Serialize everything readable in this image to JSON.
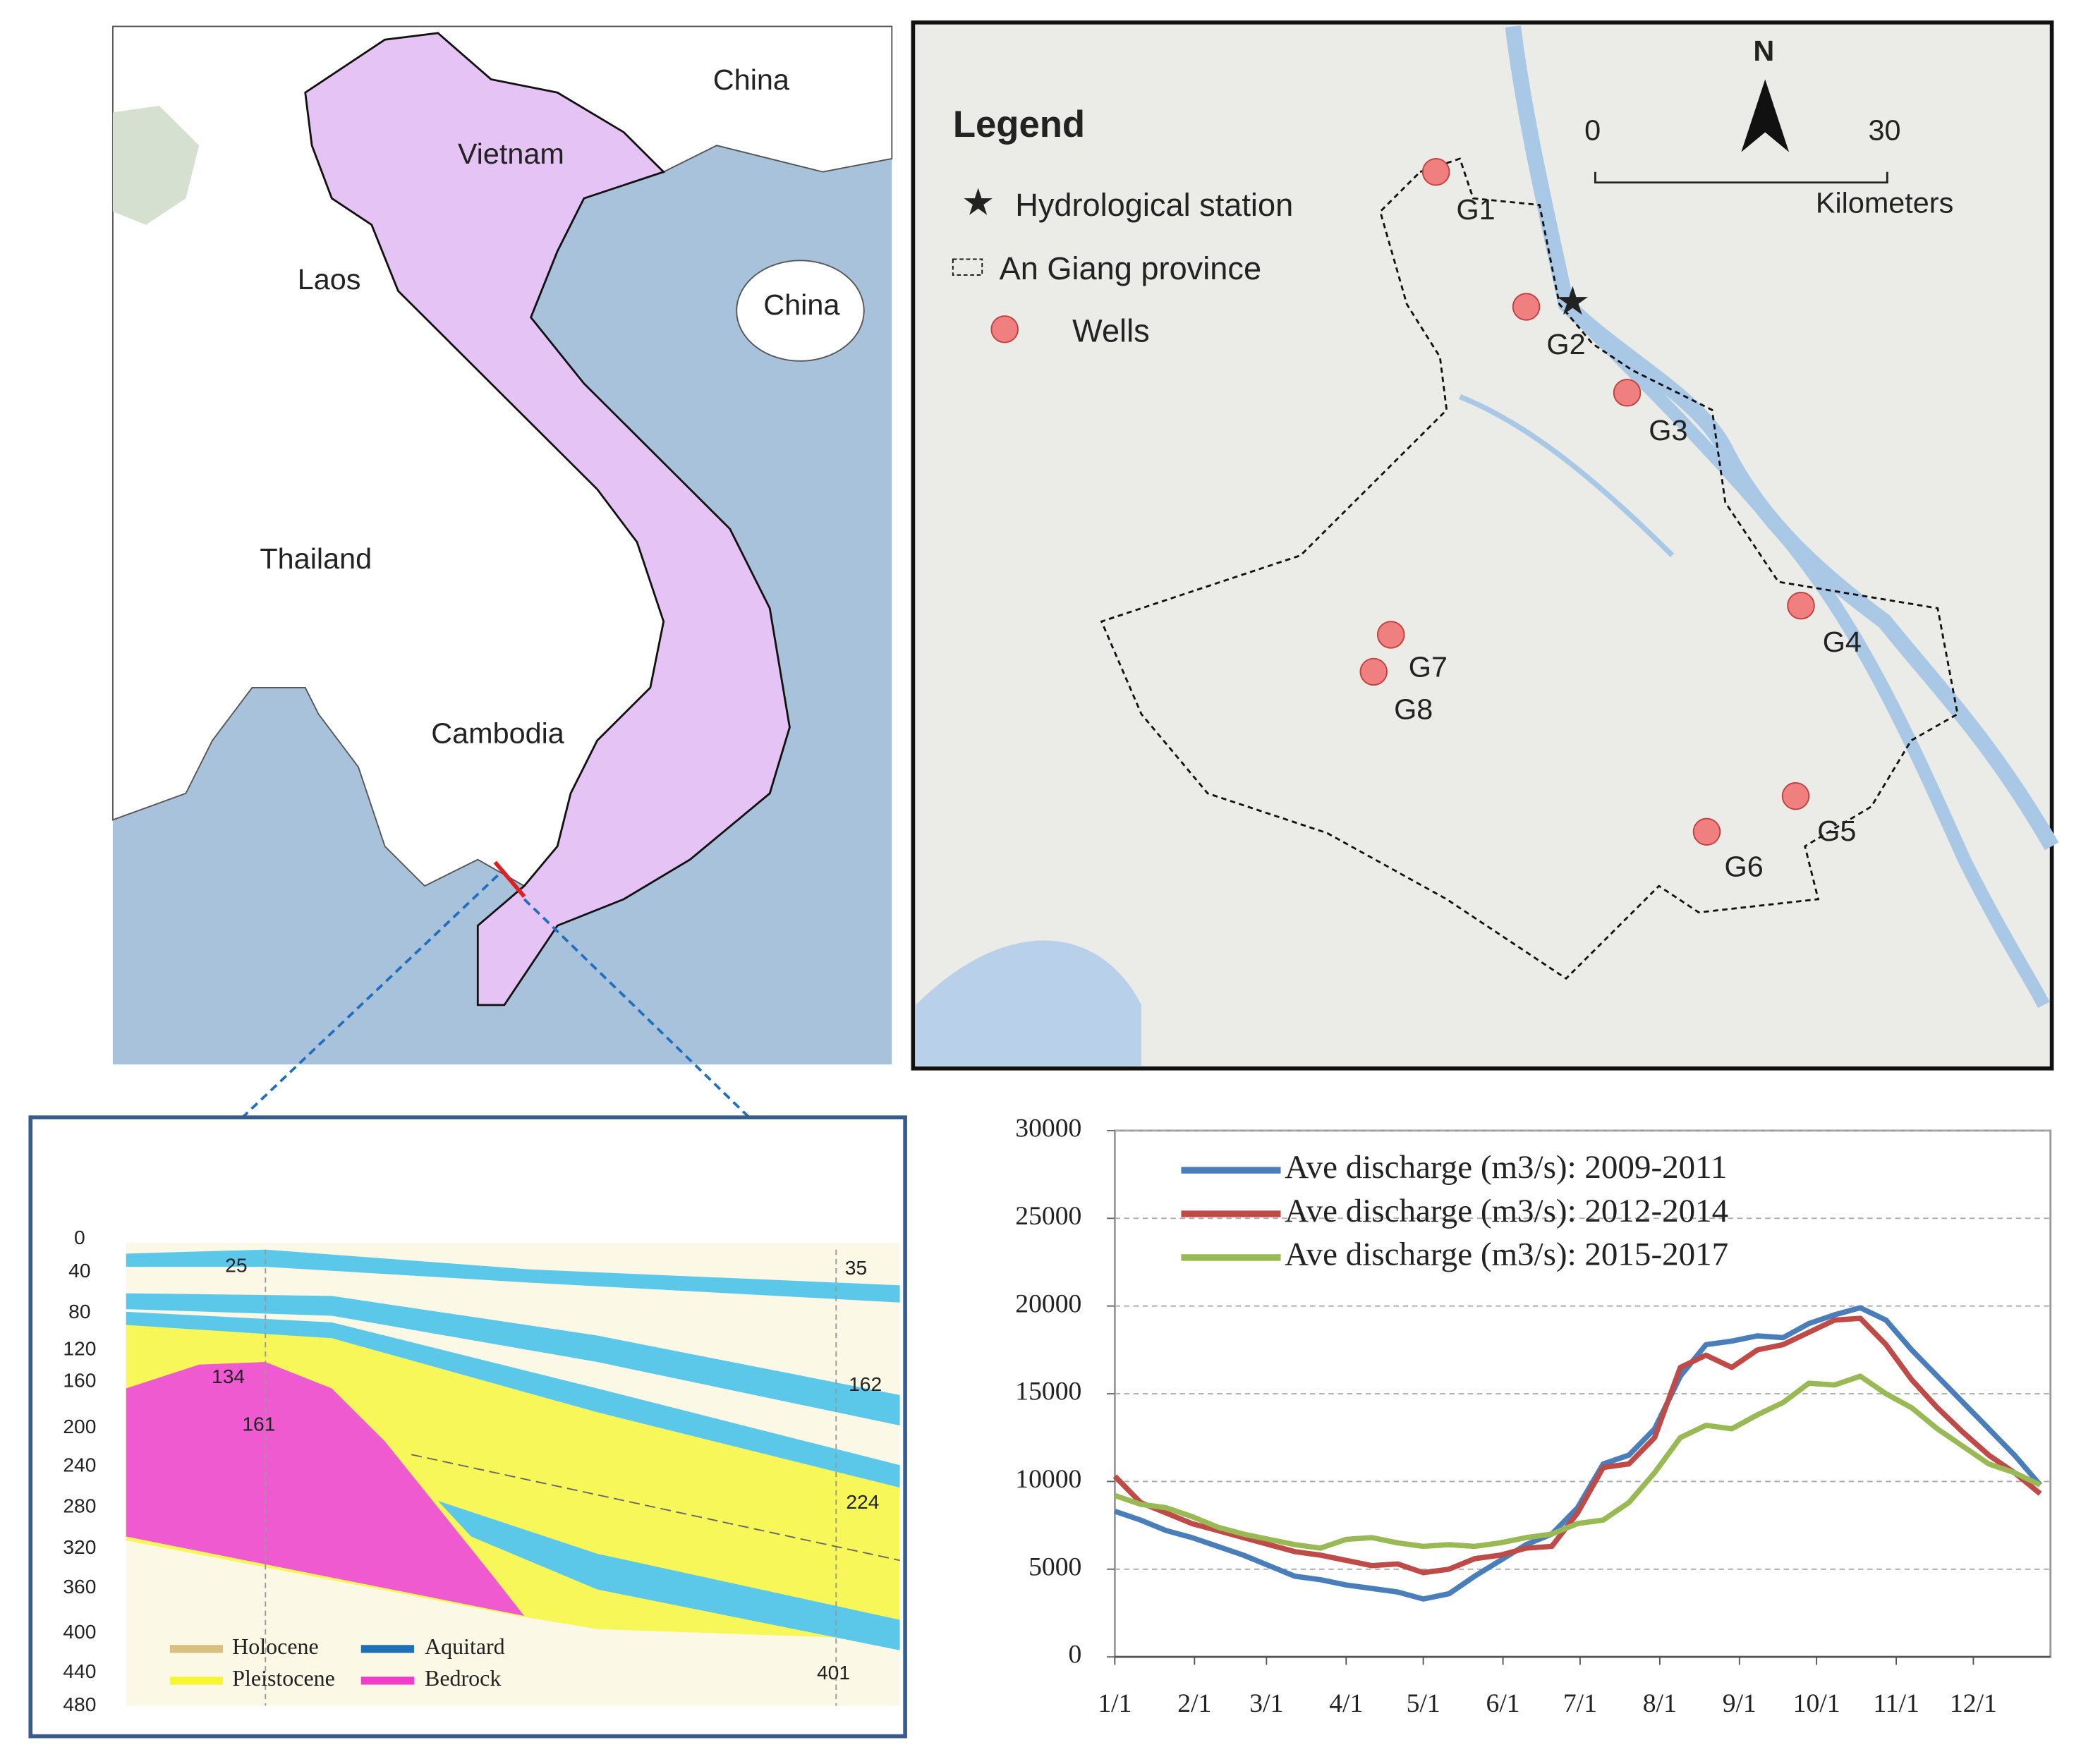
{
  "map_region": {
    "labels": [
      "China",
      "Vietnam",
      "Laos",
      "China",
      "Thailand",
      "Cambodia"
    ]
  },
  "map_study_area": {
    "legend": {
      "title": "Legend",
      "items": [
        "Hydrological station",
        "An Giang province",
        "Wells"
      ]
    },
    "scale": {
      "ticks": [
        "0",
        "30"
      ],
      "unit": "Kilometers"
    },
    "north": "N",
    "wells": [
      "G1",
      "G2",
      "G3",
      "G4",
      "G5",
      "G6",
      "G7",
      "G8"
    ]
  },
  "cross_section": {
    "depths": [
      0,
      40,
      80,
      120,
      160,
      200,
      240,
      280,
      320,
      360,
      400,
      440,
      480
    ],
    "annotations": [
      "25",
      "35",
      "134",
      "161",
      "162",
      "224",
      "401"
    ],
    "legend": [
      "Holocene",
      "Aquitard",
      "Pleistocene",
      "Bedrock"
    ]
  },
  "chart_data": {
    "type": "line",
    "x": [
      1,
      11,
      21,
      31,
      41,
      51,
      61,
      71,
      81,
      91,
      101,
      111,
      121,
      131,
      141,
      151,
      161,
      171,
      181,
      191,
      201,
      211,
      221,
      231,
      241,
      251,
      261,
      271,
      281,
      291,
      301,
      311,
      321,
      331,
      341,
      351,
      361
    ],
    "series": [
      {
        "name": "Ave discharge (m3/s): 2009-2011",
        "color": "#4a7ebb",
        "values": [
          8300,
          7800,
          7200,
          6800,
          6300,
          5800,
          5200,
          4600,
          4400,
          4100,
          3900,
          3700,
          3300,
          3600,
          4600,
          5500,
          6400,
          7000,
          8500,
          11000,
          11500,
          13000,
          16000,
          17800,
          18000,
          18300,
          18200,
          19000,
          19500,
          19900,
          19200,
          17500,
          16000,
          14500,
          13000,
          11500,
          9800
        ]
      },
      {
        "name": "Ave discharge (m3/s): 2012-2014",
        "color": "#be4b48",
        "values": [
          10300,
          8800,
          8200,
          7600,
          7200,
          6800,
          6400,
          6000,
          5800,
          5500,
          5200,
          5300,
          4800,
          5000,
          5600,
          5800,
          6200,
          6300,
          8200,
          10800,
          11000,
          12500,
          16500,
          17200,
          16500,
          17500,
          17800,
          18500,
          19200,
          19300,
          17800,
          15800,
          14200,
          12800,
          11500,
          10500,
          9300
        ]
      },
      {
        "name": "Ave discharge (m3/s): 2015-2017",
        "color": "#98b954",
        "values": [
          9200,
          8700,
          8500,
          8000,
          7400,
          7000,
          6700,
          6400,
          6200,
          6700,
          6800,
          6500,
          6300,
          6400,
          6300,
          6500,
          6800,
          7000,
          7600,
          7800,
          8800,
          10500,
          12500,
          13200,
          13000,
          13800,
          14500,
          15600,
          15500,
          16000,
          15000,
          14200,
          13000,
          12000,
          11000,
          10500,
          9800
        ]
      }
    ],
    "xlim": [
      1,
      365
    ],
    "xticks": [
      {
        "value": 1,
        "label": "1/1"
      },
      {
        "value": 32,
        "label": "2/1"
      },
      {
        "value": 60,
        "label": "3/1"
      },
      {
        "value": 91,
        "label": "4/1"
      },
      {
        "value": 121,
        "label": "5/1"
      },
      {
        "value": 152,
        "label": "6/1"
      },
      {
        "value": 182,
        "label": "7/1"
      },
      {
        "value": 213,
        "label": "8/1"
      },
      {
        "value": 244,
        "label": "9/1"
      },
      {
        "value": 274,
        "label": "10/1"
      },
      {
        "value": 305,
        "label": "11/1"
      },
      {
        "value": 335,
        "label": "12/1"
      }
    ],
    "ylim": [
      0,
      30000
    ],
    "yticks": [
      0,
      5000,
      10000,
      15000,
      20000,
      25000,
      30000
    ],
    "grid": true,
    "legend": "upper left"
  }
}
